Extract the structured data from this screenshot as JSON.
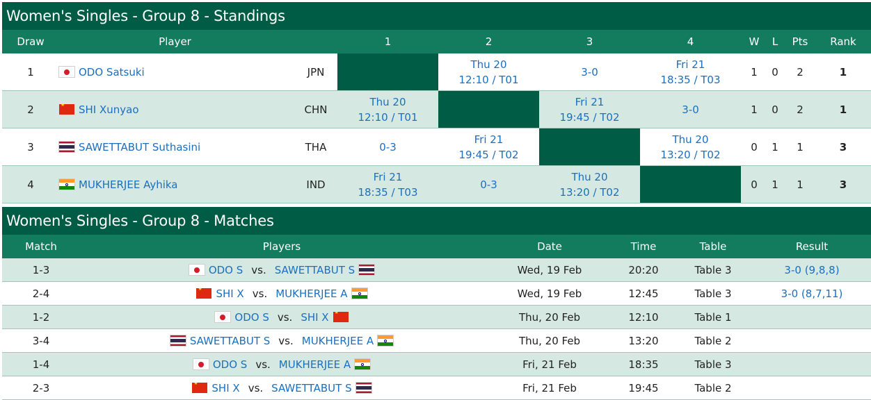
{
  "standings": {
    "title": "Women's Singles - Group 8 - Standings",
    "headers": {
      "draw": "Draw",
      "player": "Player",
      "c1": "1",
      "c2": "2",
      "c3": "3",
      "c4": "4",
      "w": "W",
      "l": "L",
      "pts": "Pts",
      "rank": "Rank"
    },
    "rows": [
      {
        "draw": "1",
        "flag": "jpn",
        "name": "ODO Satsuki",
        "assoc": "JPN",
        "cells": [
          null,
          [
            "Thu 20",
            "12:10 / T01"
          ],
          [
            "3-0"
          ],
          [
            "Fri 21",
            "18:35 / T03"
          ]
        ],
        "w": "1",
        "l": "0",
        "pts": "2",
        "rank": "1"
      },
      {
        "draw": "2",
        "flag": "chn",
        "name": "SHI Xunyao",
        "assoc": "CHN",
        "cells": [
          [
            "Thu 20",
            "12:10 / T01"
          ],
          null,
          [
            "Fri 21",
            "19:45 / T02"
          ],
          [
            "3-0"
          ]
        ],
        "w": "1",
        "l": "0",
        "pts": "2",
        "rank": "1"
      },
      {
        "draw": "3",
        "flag": "tha",
        "name": "SAWETTABUT Suthasini",
        "assoc": "THA",
        "cells": [
          [
            "0-3"
          ],
          [
            "Fri 21",
            "19:45 / T02"
          ],
          null,
          [
            "Thu 20",
            "13:20 / T02"
          ]
        ],
        "w": "0",
        "l": "1",
        "pts": "1",
        "rank": "3"
      },
      {
        "draw": "4",
        "flag": "ind",
        "name": "MUKHERJEE Ayhika",
        "assoc": "IND",
        "cells": [
          [
            "Fri 21",
            "18:35 / T03"
          ],
          [
            "0-3"
          ],
          [
            "Thu 20",
            "13:20 / T02"
          ],
          null
        ],
        "w": "0",
        "l": "1",
        "pts": "1",
        "rank": "3"
      }
    ]
  },
  "matches": {
    "title": "Women's Singles - Group 8 - Matches",
    "headers": {
      "match": "Match",
      "players": "Players",
      "date": "Date",
      "time": "Time",
      "table": "Table",
      "result": "Result"
    },
    "vs": "vs.",
    "rows": [
      {
        "match": "1-3",
        "p1": "ODO S",
        "f1": "jpn",
        "p2": "SAWETTABUT S",
        "f2": "tha",
        "date": "Wed, 19 Feb",
        "time": "20:20",
        "table": "Table 3",
        "result": "3-0 (9,8,8)"
      },
      {
        "match": "2-4",
        "p1": "SHI X",
        "f1": "chn",
        "p2": "MUKHERJEE A",
        "f2": "ind",
        "date": "Wed, 19 Feb",
        "time": "12:45",
        "table": "Table 3",
        "result": "3-0 (8,7,11)"
      },
      {
        "match": "1-2",
        "p1": "ODO S",
        "f1": "jpn",
        "p2": "SHI X",
        "f2": "chn",
        "date": "Thu, 20 Feb",
        "time": "12:10",
        "table": "Table 1",
        "result": ""
      },
      {
        "match": "3-4",
        "p1": "SAWETTABUT S",
        "f1": "tha",
        "p2": "MUKHERJEE A",
        "f2": "ind",
        "date": "Thu, 20 Feb",
        "time": "13:20",
        "table": "Table 2",
        "result": ""
      },
      {
        "match": "1-4",
        "p1": "ODO S",
        "f1": "jpn",
        "p2": "MUKHERJEE A",
        "f2": "ind",
        "date": "Fri, 21 Feb",
        "time": "18:35",
        "table": "Table 3",
        "result": ""
      },
      {
        "match": "2-3",
        "p1": "SHI X",
        "f1": "chn",
        "p2": "SAWETTABUT S",
        "f2": "tha",
        "date": "Fri, 21 Feb",
        "time": "19:45",
        "table": "Table 2",
        "result": ""
      }
    ]
  },
  "colors": {
    "title_bg": "#005c45",
    "header_bg": "#137b5e",
    "row_alt": "#d5e9e2",
    "link": "#1a6fc0"
  }
}
